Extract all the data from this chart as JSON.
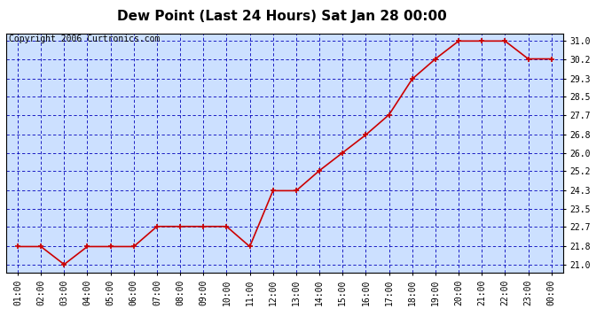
{
  "title": "Dew Point (Last 24 Hours) Sat Jan 28 00:00",
  "copyright": "Copyright 2006 Curtronics.com",
  "hours": [
    "01:00",
    "02:00",
    "03:00",
    "04:00",
    "05:00",
    "06:00",
    "07:00",
    "08:00",
    "09:00",
    "10:00",
    "11:00",
    "12:00",
    "13:00",
    "14:00",
    "15:00",
    "16:00",
    "17:00",
    "18:00",
    "19:00",
    "20:00",
    "21:00",
    "22:00",
    "23:00",
    "00:00"
  ],
  "values": [
    21.8,
    21.8,
    21.0,
    21.8,
    21.8,
    21.8,
    22.7,
    22.7,
    22.7,
    22.7,
    21.8,
    24.3,
    24.3,
    25.2,
    26.0,
    26.8,
    27.7,
    29.3,
    30.2,
    31.0,
    31.0,
    31.0,
    30.2,
    30.2
  ],
  "yticks": [
    21.0,
    21.8,
    22.7,
    23.5,
    24.3,
    25.2,
    26.0,
    26.8,
    27.7,
    28.5,
    29.3,
    30.2,
    31.0
  ],
  "ylim": [
    20.65,
    31.35
  ],
  "line_color": "#cc0000",
  "marker_color": "#cc0000",
  "fig_bg_color": "#ffffff",
  "plot_bg": "#cce0ff",
  "grid_color": "#0000bb",
  "border_color": "#000000",
  "title_fontsize": 11,
  "copyright_fontsize": 7,
  "tick_fontsize": 7,
  "ytick_fontsize": 7
}
